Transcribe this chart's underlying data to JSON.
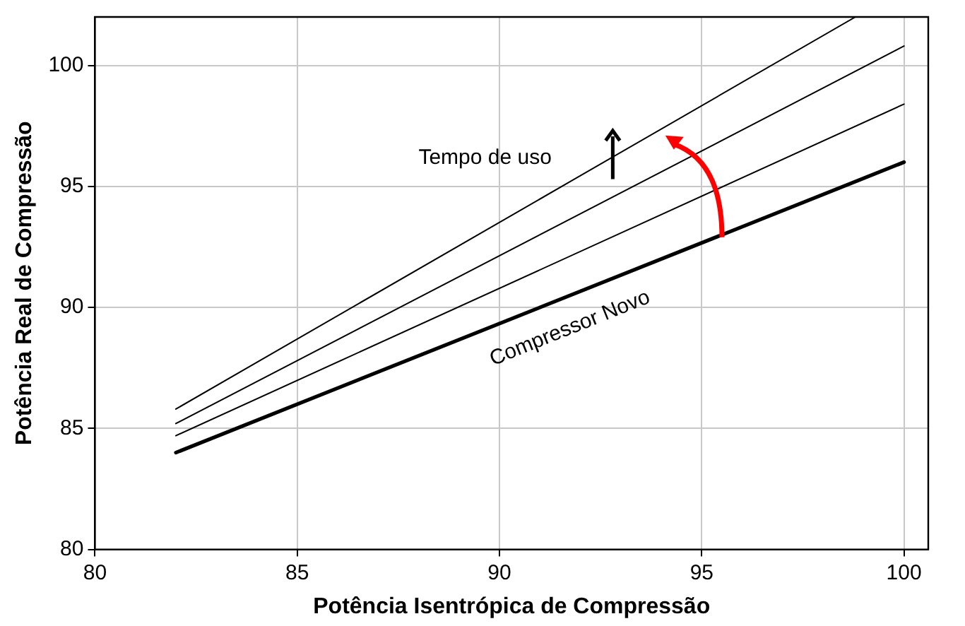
{
  "chart_data": {
    "type": "line",
    "xlabel": "Potência Isentrópica de Compressão",
    "ylabel": "Potência Real de Compressão",
    "xlim": [
      80,
      100.6
    ],
    "xticks": [
      80,
      85,
      90,
      95,
      100
    ],
    "ylim": [
      80,
      102
    ],
    "yticks": [
      80,
      85,
      90,
      95,
      100
    ],
    "grid": true,
    "legend": false,
    "marker": "none",
    "line_style": "solid",
    "series": [
      {
        "color": "#000000",
        "x": [
          82,
          100
        ],
        "values": [
          84,
          96
        ]
      },
      {
        "color": "#000000",
        "x": [
          82,
          100
        ],
        "values": [
          84.7,
          98.4
        ]
      },
      {
        "color": "#000000",
        "x": [
          82,
          100
        ],
        "values": [
          85.2,
          100.8
        ]
      },
      {
        "color": "#000000",
        "x": [
          82,
          98.8
        ],
        "values": [
          85.8,
          102
        ]
      }
    ],
    "annotations": [
      "Tempo de uso",
      "Compressor Novo"
    ]
  }
}
